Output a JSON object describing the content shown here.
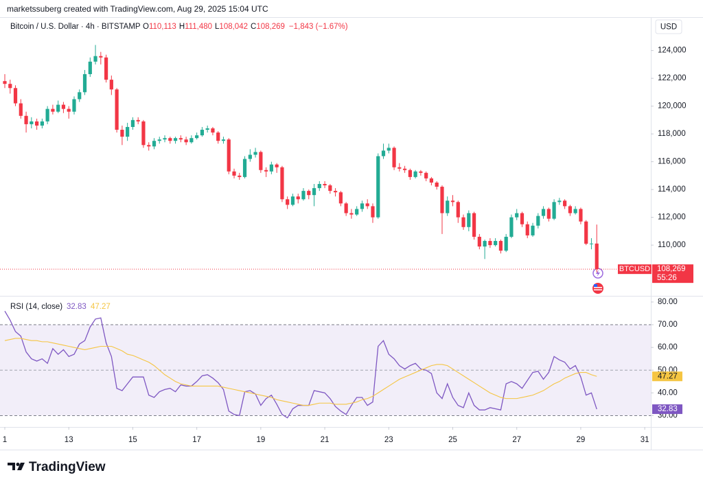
{
  "header": {
    "attribution": "marketssuberg created with TradingView.com, Aug 29, 2025 15:04 UTC",
    "symbol": "Bitcoin / U.S. Dollar · 4h · BITSTAMP",
    "ohlc_legend": [
      {
        "key": "O",
        "text": "110,113"
      },
      {
        "key": "H",
        "text": "111,480"
      },
      {
        "key": "L",
        "text": "108,042"
      },
      {
        "key": "C",
        "text": "108,269"
      }
    ],
    "change": "−1,843 (−1.67%)",
    "currency": "USD"
  },
  "chart_data": [
    {
      "type": "candlestick",
      "x": [
        11,
        11.167,
        11.333,
        11.5,
        11.667,
        11.833,
        12,
        12.167,
        12.333,
        12.5,
        12.667,
        12.833,
        13,
        13.167,
        13.333,
        13.5,
        13.667,
        13.833,
        14,
        14.167,
        14.333,
        14.5,
        14.667,
        14.833,
        15,
        15.167,
        15.333,
        15.5,
        15.667,
        15.833,
        16,
        16.167,
        16.333,
        16.5,
        16.667,
        16.833,
        17,
        17.167,
        17.333,
        17.5,
        17.667,
        17.833,
        18,
        18.167,
        18.333,
        18.5,
        18.667,
        18.833,
        19,
        19.167,
        19.333,
        19.5,
        19.667,
        19.833,
        20,
        20.167,
        20.333,
        20.5,
        20.667,
        20.833,
        21,
        21.167,
        21.333,
        21.5,
        21.667,
        21.833,
        22,
        22.167,
        22.333,
        22.5,
        22.667,
        22.833,
        23,
        23.167,
        23.333,
        23.5,
        23.667,
        23.833,
        24,
        24.167,
        24.333,
        24.5,
        24.667,
        24.833,
        25,
        25.167,
        25.333,
        25.5,
        25.667,
        25.833,
        26,
        26.167,
        26.333,
        26.5,
        26.667,
        26.833,
        27,
        27.167,
        27.333,
        27.5,
        27.667,
        27.833,
        28,
        28.167,
        28.333,
        28.5,
        28.667,
        28.833,
        29,
        29.167,
        29.333,
        29.5
      ],
      "series": [
        {
          "name": "BTCUSD",
          "open": [
            121800,
            121600,
            121300,
            120200,
            119300,
            118700,
            118900,
            118600,
            118900,
            119800,
            119600,
            120100,
            119800,
            119600,
            120500,
            121000,
            122300,
            123200,
            123600,
            123500,
            121900,
            121200,
            118300,
            117800,
            118500,
            119000,
            118900,
            117200,
            117100,
            117500,
            117600,
            117700,
            117500,
            117700,
            117600,
            117400,
            117700,
            117900,
            118300,
            118400,
            118100,
            117500,
            117600,
            115300,
            115000,
            114900,
            116200,
            116500,
            116700,
            115400,
            115300,
            115800,
            115600,
            113300,
            112900,
            113500,
            113300,
            113900,
            113600,
            114100,
            114400,
            114300,
            113900,
            113800,
            113000,
            112300,
            112200,
            112600,
            113000,
            112800,
            112000,
            116400,
            116800,
            117000,
            115600,
            115500,
            115400,
            114900,
            115300,
            115200,
            114800,
            114500,
            114200,
            112300,
            113200,
            113100,
            112000,
            111300,
            112300,
            110600,
            109900,
            110300,
            110000,
            110300,
            109600,
            110600,
            112000,
            112300,
            111500,
            110700,
            111400,
            112100,
            112600,
            111900,
            113100,
            113200,
            112800,
            112300,
            112600,
            111700,
            110100,
            110113
          ],
          "high": [
            122300,
            121900,
            121500,
            120500,
            119600,
            119200,
            119100,
            119100,
            120000,
            120100,
            120400,
            120300,
            120000,
            120700,
            121200,
            122600,
            123500,
            124400,
            123900,
            123700,
            122200,
            121300,
            118600,
            118800,
            119200,
            119200,
            119000,
            117400,
            117700,
            117800,
            117900,
            117800,
            117800,
            117900,
            117800,
            117900,
            118100,
            118500,
            118600,
            118500,
            118200,
            117800,
            117700,
            115500,
            115200,
            116400,
            116900,
            117000,
            116800,
            115600,
            116000,
            115900,
            115700,
            113500,
            113700,
            113700,
            114100,
            114000,
            114400,
            114600,
            114600,
            114400,
            114100,
            113900,
            113100,
            112600,
            112800,
            113200,
            113300,
            113000,
            116600,
            117300,
            117300,
            117100,
            115900,
            115700,
            115500,
            115400,
            115400,
            115300,
            114900,
            114600,
            114300,
            113500,
            113600,
            113200,
            112200,
            112500,
            112400,
            110800,
            110400,
            110500,
            110500,
            110400,
            110800,
            112200,
            112600,
            112400,
            111700,
            111600,
            112300,
            112800,
            112700,
            113300,
            113400,
            113300,
            112900,
            112800,
            112700,
            111800,
            110500,
            111480
          ],
          "low": [
            121300,
            120900,
            120000,
            119100,
            118100,
            118400,
            118300,
            118400,
            118700,
            119400,
            119500,
            119500,
            119100,
            119400,
            120300,
            120800,
            122100,
            123000,
            123000,
            121700,
            120800,
            118100,
            117200,
            117500,
            118300,
            118700,
            117000,
            116800,
            116900,
            117300,
            117400,
            117300,
            117300,
            117400,
            117200,
            117300,
            117600,
            117800,
            118100,
            117900,
            117300,
            117300,
            115100,
            114800,
            114700,
            114800,
            116000,
            116300,
            115200,
            114900,
            115100,
            115200,
            113100,
            112600,
            112800,
            113000,
            113200,
            113300,
            112800,
            113900,
            114100,
            113700,
            113500,
            112800,
            112100,
            111900,
            112100,
            112400,
            112600,
            111600,
            111900,
            116200,
            116600,
            115400,
            115300,
            115200,
            114700,
            114800,
            115000,
            114600,
            114300,
            114000,
            110800,
            112100,
            112800,
            111600,
            111100,
            111000,
            110400,
            109700,
            109000,
            109800,
            109900,
            109400,
            109500,
            110500,
            111800,
            111300,
            110500,
            110600,
            111200,
            111900,
            111700,
            111800,
            112900,
            112600,
            112100,
            112200,
            111500,
            110000,
            109700,
            108042
          ],
          "close": [
            121600,
            121300,
            120200,
            119300,
            118700,
            118900,
            118600,
            118900,
            119800,
            119600,
            120100,
            119800,
            119600,
            120500,
            121000,
            122300,
            123200,
            123600,
            123500,
            121900,
            121200,
            118300,
            117800,
            118500,
            119000,
            118900,
            117200,
            117100,
            117500,
            117600,
            117700,
            117500,
            117700,
            117600,
            117400,
            117700,
            117900,
            118300,
            118400,
            118100,
            117500,
            117600,
            115300,
            115000,
            114900,
            116200,
            116500,
            116700,
            115400,
            115300,
            115800,
            115600,
            113300,
            112900,
            113500,
            113300,
            113900,
            113600,
            114100,
            114400,
            114300,
            113900,
            113800,
            113000,
            112300,
            112200,
            112600,
            113000,
            112800,
            112000,
            116400,
            116800,
            117000,
            115600,
            115500,
            115400,
            114900,
            115300,
            115200,
            114800,
            114500,
            114200,
            112300,
            113200,
            113100,
            112000,
            111300,
            112300,
            110600,
            109900,
            110300,
            110000,
            110300,
            109600,
            110600,
            112000,
            112300,
            111500,
            110700,
            111400,
            112100,
            112600,
            111900,
            113100,
            113200,
            112800,
            112300,
            112600,
            111700,
            110100,
            110113,
            108269
          ],
          "last_label": "108,269",
          "countdown": "55:26"
        }
      ],
      "up_color": "#22ab94",
      "down_color": "#f23645",
      "xlim": [
        10.85,
        31.19
      ],
      "ylim": [
        106400,
        126400
      ],
      "yticks": [
        {
          "value": 110000,
          "label": "110,000"
        },
        {
          "value": 112000,
          "label": "112,000"
        },
        {
          "value": 114000,
          "label": "114,000"
        },
        {
          "value": 116000,
          "label": "116,000"
        },
        {
          "value": 118000,
          "label": "118,000"
        },
        {
          "value": 120000,
          "label": "120,000"
        },
        {
          "value": 122000,
          "label": "122,000"
        },
        {
          "value": 124000,
          "label": "124,000"
        }
      ],
      "last_price_line": true
    },
    {
      "type": "line",
      "title": "RSI (14, close)",
      "x": [
        11,
        11.167,
        11.333,
        11.5,
        11.667,
        11.833,
        12,
        12.167,
        12.333,
        12.5,
        12.667,
        12.833,
        13,
        13.167,
        13.333,
        13.5,
        13.667,
        13.833,
        14,
        14.167,
        14.333,
        14.5,
        14.667,
        14.833,
        15,
        15.167,
        15.333,
        15.5,
        15.667,
        15.833,
        16,
        16.167,
        16.333,
        16.5,
        16.667,
        16.833,
        17,
        17.167,
        17.333,
        17.5,
        17.667,
        17.833,
        18,
        18.167,
        18.333,
        18.5,
        18.667,
        18.833,
        19,
        19.167,
        19.333,
        19.5,
        19.667,
        19.833,
        20,
        20.167,
        20.333,
        20.5,
        20.667,
        20.833,
        21,
        21.167,
        21.333,
        21.5,
        21.667,
        21.833,
        22,
        22.167,
        22.333,
        22.5,
        22.667,
        22.833,
        23,
        23.167,
        23.333,
        23.5,
        23.667,
        23.833,
        24,
        24.167,
        24.333,
        24.5,
        24.667,
        24.833,
        25,
        25.167,
        25.333,
        25.5,
        25.667,
        25.833,
        26,
        26.167,
        26.333,
        26.5,
        26.667,
        26.833,
        27,
        27.167,
        27.333,
        27.5,
        27.667,
        27.833,
        28,
        28.167,
        28.333,
        28.5,
        28.667,
        28.833,
        29,
        29.167,
        29.333,
        29.5
      ],
      "series": [
        {
          "color": "#7e57c2",
          "values": [
            76,
            72,
            67,
            65,
            58,
            55,
            54,
            55,
            53,
            59.5,
            57,
            59,
            56,
            57,
            61.5,
            63,
            69,
            72.5,
            73,
            62,
            56,
            42,
            41,
            44,
            47,
            47,
            47,
            39,
            38,
            40.5,
            41.5,
            42,
            40.5,
            43.5,
            43,
            43,
            45,
            47.5,
            48,
            46.5,
            44.5,
            41.5,
            32,
            30.5,
            30,
            40.5,
            41,
            39.5,
            34.5,
            37.5,
            39,
            35,
            30.5,
            29,
            33,
            34.5,
            34.5,
            34.5,
            41,
            40.5,
            40,
            37.5,
            34,
            32,
            30.5,
            34.5,
            38,
            38,
            34.5,
            36,
            60.5,
            63,
            57,
            55,
            52,
            50.5,
            52,
            53,
            50.5,
            50,
            48.5,
            40,
            37.5,
            44,
            38,
            34.5,
            33.5,
            40,
            34.5,
            32.5,
            32.5,
            33.5,
            33,
            32.5,
            44,
            45,
            44,
            42,
            45.5,
            49,
            49.5,
            46,
            49,
            56,
            54.5,
            53.5,
            50.5,
            52,
            47,
            39,
            40,
            32.83
          ]
        },
        {
          "color": "#f5c542",
          "values": [
            63,
            63.5,
            64,
            64,
            63.5,
            63,
            63,
            62.5,
            62.5,
            62,
            61.5,
            61,
            60.5,
            60,
            59.5,
            59,
            59.5,
            60,
            60.5,
            60.5,
            60.5,
            59.5,
            58.5,
            57,
            56.5,
            55.5,
            54.5,
            53.5,
            52,
            50,
            48,
            46.5,
            45,
            44,
            43.5,
            43,
            43,
            43,
            43,
            43,
            43,
            42.5,
            42,
            41.5,
            41,
            40.5,
            40,
            39.5,
            39,
            38.5,
            38,
            37,
            36.5,
            36,
            35.5,
            35,
            34.5,
            34.5,
            35,
            35.5,
            35.5,
            35.5,
            35,
            35,
            35,
            35.5,
            36,
            37,
            37.5,
            38.5,
            40,
            41.5,
            43,
            44.5,
            46,
            47,
            48,
            49,
            50,
            51,
            52,
            52.5,
            52.5,
            52,
            50.5,
            49,
            47.5,
            46,
            44.5,
            43,
            41.5,
            40,
            39,
            38,
            37.5,
            37.5,
            37.5,
            38,
            38.5,
            39,
            40,
            41,
            42.5,
            44,
            45,
            46.5,
            47.5,
            48.5,
            49,
            49,
            48,
            47.27
          ]
        }
      ],
      "xlim": [
        10.85,
        31.19
      ],
      "xticks": [
        {
          "value": 11,
          "label": "1"
        },
        13,
        15,
        17,
        19,
        21,
        23,
        25,
        27,
        29,
        31
      ],
      "ylim": [
        25,
        82.4
      ],
      "yticks": [
        {
          "value": 30,
          "label": "30.00"
        },
        {
          "value": 40,
          "label": "40.00"
        },
        {
          "value": 50,
          "label": "50.00"
        },
        {
          "value": 60,
          "label": "60.00"
        },
        {
          "value": 70,
          "label": "70.00"
        },
        {
          "value": 80,
          "label": "80.00"
        }
      ],
      "band": [
        30,
        70
      ],
      "midline": 50,
      "band_color": "#7e57c2"
    }
  ],
  "footer": {
    "logo_text": "TradingView"
  }
}
